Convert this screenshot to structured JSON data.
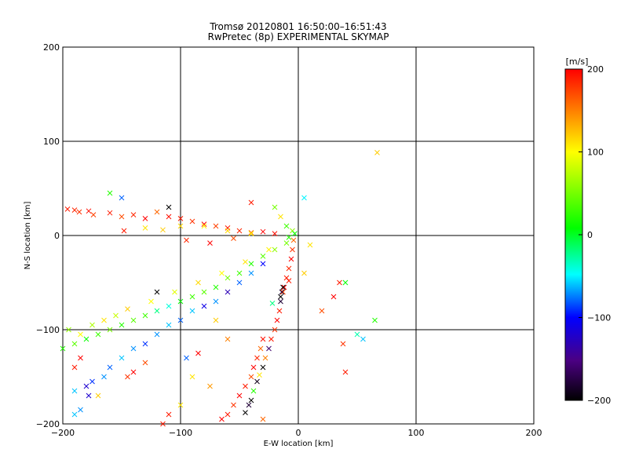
{
  "chart_data": {
    "type": "scatter",
    "title": "Tromsø 20120801 16:50:00–16:51:43",
    "subtitle": "RwPretec (8p) EXPERIMENTAL SKYMAP",
    "xlabel": "E-W location [km]",
    "ylabel": "N-S location [km]",
    "xlim": [
      -200,
      200
    ],
    "ylim": [
      -200,
      200
    ],
    "x_ticks": [
      "−200",
      "−100",
      "0",
      "100",
      "200"
    ],
    "y_ticks": [
      "−200",
      "−100",
      "0",
      "100",
      "200"
    ],
    "grid": true,
    "colorbar": {
      "label": "[m/s]",
      "range": [
        -200,
        200
      ],
      "ticks": [
        "200",
        "100",
        "0",
        "−100",
        "−200"
      ],
      "colors": [
        "#000000",
        "#4b0082",
        "#0000ff",
        "#00ffff",
        "#00ff00",
        "#ffff00",
        "#ff0000"
      ]
    },
    "points": [
      {
        "x": -196,
        "y": 28,
        "v": 190
      },
      {
        "x": -190,
        "y": 27,
        "v": 185
      },
      {
        "x": -186,
        "y": 25,
        "v": 180
      },
      {
        "x": -178,
        "y": 26,
        "v": 195
      },
      {
        "x": -174,
        "y": 22,
        "v": 175
      },
      {
        "x": -160,
        "y": 24,
        "v": 190
      },
      {
        "x": -150,
        "y": 20,
        "v": 170
      },
      {
        "x": -140,
        "y": 22,
        "v": 185
      },
      {
        "x": -130,
        "y": 18,
        "v": 200
      },
      {
        "x": -120,
        "y": 25,
        "v": 160
      },
      {
        "x": -110,
        "y": 20,
        "v": 195
      },
      {
        "x": -100,
        "y": 18,
        "v": 190
      },
      {
        "x": -90,
        "y": 15,
        "v": 180
      },
      {
        "x": -80,
        "y": 12,
        "v": 200
      },
      {
        "x": -70,
        "y": 10,
        "v": 175
      },
      {
        "x": -60,
        "y": 8,
        "v": 190
      },
      {
        "x": -50,
        "y": 5,
        "v": 185
      },
      {
        "x": -40,
        "y": 3,
        "v": 160
      },
      {
        "x": -30,
        "y": 4,
        "v": 200
      },
      {
        "x": -20,
        "y": 2,
        "v": 195
      },
      {
        "x": -130,
        "y": 8,
        "v": 110
      },
      {
        "x": -115,
        "y": 6,
        "v": 120
      },
      {
        "x": -100,
        "y": 10,
        "v": 115
      },
      {
        "x": -80,
        "y": 10,
        "v": 100
      },
      {
        "x": -60,
        "y": 5,
        "v": 115
      },
      {
        "x": -40,
        "y": 2,
        "v": 105
      },
      {
        "x": -148,
        "y": 5,
        "v": 190
      },
      {
        "x": -95,
        "y": -5,
        "v": 185
      },
      {
        "x": -75,
        "y": -8,
        "v": 200
      },
      {
        "x": -55,
        "y": -3,
        "v": 170
      },
      {
        "x": -150,
        "y": 40,
        "v": -80
      },
      {
        "x": -160,
        "y": 45,
        "v": 20
      },
      {
        "x": -110,
        "y": 30,
        "v": -200
      },
      {
        "x": -40,
        "y": 35,
        "v": 190
      },
      {
        "x": -20,
        "y": 30,
        "v": 50
      },
      {
        "x": -15,
        "y": 20,
        "v": 110
      },
      {
        "x": -10,
        "y": 10,
        "v": 30
      },
      {
        "x": -5,
        "y": 5,
        "v": 60
      },
      {
        "x": -8,
        "y": -2,
        "v": 20
      },
      {
        "x": -3,
        "y": 2,
        "v": 10
      },
      {
        "x": 5,
        "y": 40,
        "v": -50
      },
      {
        "x": -200,
        "y": -120,
        "v": 20
      },
      {
        "x": -190,
        "y": -115,
        "v": 40
      },
      {
        "x": -180,
        "y": -110,
        "v": 10
      },
      {
        "x": -170,
        "y": -105,
        "v": 30
      },
      {
        "x": -160,
        "y": -100,
        "v": 50
      },
      {
        "x": -150,
        "y": -95,
        "v": 20
      },
      {
        "x": -140,
        "y": -90,
        "v": 40
      },
      {
        "x": -130,
        "y": -85,
        "v": 30
      },
      {
        "x": -120,
        "y": -80,
        "v": -20
      },
      {
        "x": -110,
        "y": -75,
        "v": -40
      },
      {
        "x": -100,
        "y": -70,
        "v": 10
      },
      {
        "x": -90,
        "y": -65,
        "v": 30
      },
      {
        "x": -80,
        "y": -60,
        "v": 40
      },
      {
        "x": -70,
        "y": -55,
        "v": 20
      },
      {
        "x": -60,
        "y": -45,
        "v": 50
      },
      {
        "x": -50,
        "y": -40,
        "v": 30
      },
      {
        "x": -40,
        "y": -30,
        "v": 20
      },
      {
        "x": -30,
        "y": -22,
        "v": 40
      },
      {
        "x": -20,
        "y": -15,
        "v": 60
      },
      {
        "x": -10,
        "y": -8,
        "v": 50
      },
      {
        "x": -185,
        "y": -105,
        "v": 100
      },
      {
        "x": -165,
        "y": -90,
        "v": 110
      },
      {
        "x": -145,
        "y": -78,
        "v": 120
      },
      {
        "x": -125,
        "y": -70,
        "v": 100
      },
      {
        "x": -105,
        "y": -60,
        "v": 90
      },
      {
        "x": -85,
        "y": -50,
        "v": 115
      },
      {
        "x": -65,
        "y": -40,
        "v": 100
      },
      {
        "x": -45,
        "y": -28,
        "v": 110
      },
      {
        "x": -25,
        "y": -15,
        "v": 105
      },
      {
        "x": -195,
        "y": -100,
        "v": 60
      },
      {
        "x": -175,
        "y": -95,
        "v": 70
      },
      {
        "x": -155,
        "y": -85,
        "v": 80
      },
      {
        "x": -190,
        "y": -165,
        "v": -60
      },
      {
        "x": -180,
        "y": -160,
        "v": -120
      },
      {
        "x": -175,
        "y": -155,
        "v": -90
      },
      {
        "x": -165,
        "y": -150,
        "v": -70
      },
      {
        "x": -160,
        "y": -140,
        "v": -80
      },
      {
        "x": -150,
        "y": -130,
        "v": -60
      },
      {
        "x": -140,
        "y": -120,
        "v": -70
      },
      {
        "x": -130,
        "y": -115,
        "v": -90
      },
      {
        "x": -120,
        "y": -105,
        "v": -70
      },
      {
        "x": -110,
        "y": -95,
        "v": -60
      },
      {
        "x": -100,
        "y": -90,
        "v": -80
      },
      {
        "x": -90,
        "y": -80,
        "v": -60
      },
      {
        "x": -80,
        "y": -75,
        "v": -110
      },
      {
        "x": -70,
        "y": -70,
        "v": -70
      },
      {
        "x": -60,
        "y": -60,
        "v": -130
      },
      {
        "x": -50,
        "y": -50,
        "v": -80
      },
      {
        "x": -40,
        "y": -40,
        "v": -70
      },
      {
        "x": -30,
        "y": -30,
        "v": -100
      },
      {
        "x": -190,
        "y": -190,
        "v": -60
      },
      {
        "x": -185,
        "y": -185,
        "v": -70
      },
      {
        "x": -170,
        "y": -170,
        "v": 120
      },
      {
        "x": -178,
        "y": -170,
        "v": -120
      },
      {
        "x": -145,
        "y": -150,
        "v": 180
      },
      {
        "x": -60,
        "y": -190,
        "v": 190
      },
      {
        "x": -55,
        "y": -180,
        "v": 180
      },
      {
        "x": -50,
        "y": -170,
        "v": 200
      },
      {
        "x": -45,
        "y": -160,
        "v": 190
      },
      {
        "x": -40,
        "y": -150,
        "v": 170
      },
      {
        "x": -38,
        "y": -140,
        "v": 200
      },
      {
        "x": -35,
        "y": -130,
        "v": 185
      },
      {
        "x": -32,
        "y": -120,
        "v": 160
      },
      {
        "x": -30,
        "y": -110,
        "v": 195
      },
      {
        "x": -45,
        "y": -188,
        "v": -200
      },
      {
        "x": -42,
        "y": -180,
        "v": -180
      },
      {
        "x": -40,
        "y": -175,
        "v": -200
      },
      {
        "x": -38,
        "y": -165,
        "v": 20
      },
      {
        "x": -35,
        "y": -155,
        "v": -190
      },
      {
        "x": -33,
        "y": -148,
        "v": 110
      },
      {
        "x": -30,
        "y": -140,
        "v": -200
      },
      {
        "x": -28,
        "y": -130,
        "v": 150
      },
      {
        "x": -25,
        "y": -120,
        "v": -160
      },
      {
        "x": -23,
        "y": -110,
        "v": 190
      },
      {
        "x": -20,
        "y": -100,
        "v": 180
      },
      {
        "x": -18,
        "y": -90,
        "v": 200
      },
      {
        "x": -16,
        "y": -80,
        "v": 190
      },
      {
        "x": -15,
        "y": -70,
        "v": -180
      },
      {
        "x": -13,
        "y": -60,
        "v": 170
      },
      {
        "x": -12,
        "y": -55,
        "v": 200
      },
      {
        "x": -10,
        "y": -45,
        "v": 190
      },
      {
        "x": -8,
        "y": -35,
        "v": 185
      },
      {
        "x": -6,
        "y": -25,
        "v": 200
      },
      {
        "x": -5,
        "y": -15,
        "v": 180
      },
      {
        "x": -4,
        "y": -5,
        "v": 160
      },
      {
        "x": -15,
        "y": -65,
        "v": -200
      },
      {
        "x": -14,
        "y": -60,
        "v": -180
      },
      {
        "x": -13,
        "y": -55,
        "v": -200
      },
      {
        "x": -8,
        "y": -48,
        "v": 190
      },
      {
        "x": -22,
        "y": -72,
        "v": -20
      },
      {
        "x": -60,
        "y": -110,
        "v": 150
      },
      {
        "x": -70,
        "y": -90,
        "v": 120
      },
      {
        "x": -120,
        "y": -60,
        "v": -200
      },
      {
        "x": -140,
        "y": -145,
        "v": 200
      },
      {
        "x": -130,
        "y": -135,
        "v": 170
      },
      {
        "x": -190,
        "y": -140,
        "v": 190
      },
      {
        "x": -185,
        "y": -130,
        "v": 200
      },
      {
        "x": -110,
        "y": -190,
        "v": 190
      },
      {
        "x": -100,
        "y": -180,
        "v": 110
      },
      {
        "x": -115,
        "y": -200,
        "v": 190
      },
      {
        "x": -75,
        "y": -160,
        "v": 140
      },
      {
        "x": -90,
        "y": -150,
        "v": 110
      },
      {
        "x": -95,
        "y": -130,
        "v": -80
      },
      {
        "x": -85,
        "y": -125,
        "v": 200
      },
      {
        "x": -65,
        "y": -195,
        "v": 200
      },
      {
        "x": -30,
        "y": -195,
        "v": 160
      },
      {
        "x": 40,
        "y": -145,
        "v": 190
      },
      {
        "x": 55,
        "y": -110,
        "v": -60
      },
      {
        "x": 50,
        "y": -105,
        "v": -30
      },
      {
        "x": 40,
        "y": -50,
        "v": 10
      },
      {
        "x": 35,
        "y": -50,
        "v": 190
      },
      {
        "x": 30,
        "y": -65,
        "v": 200
      },
      {
        "x": 20,
        "y": -80,
        "v": 170
      },
      {
        "x": 10,
        "y": -10,
        "v": 110
      },
      {
        "x": 5,
        "y": -40,
        "v": 120
      },
      {
        "x": 67,
        "y": 88,
        "v": 120
      },
      {
        "x": 65,
        "y": -90,
        "v": 20
      },
      {
        "x": 38,
        "y": -115,
        "v": 180
      }
    ]
  }
}
